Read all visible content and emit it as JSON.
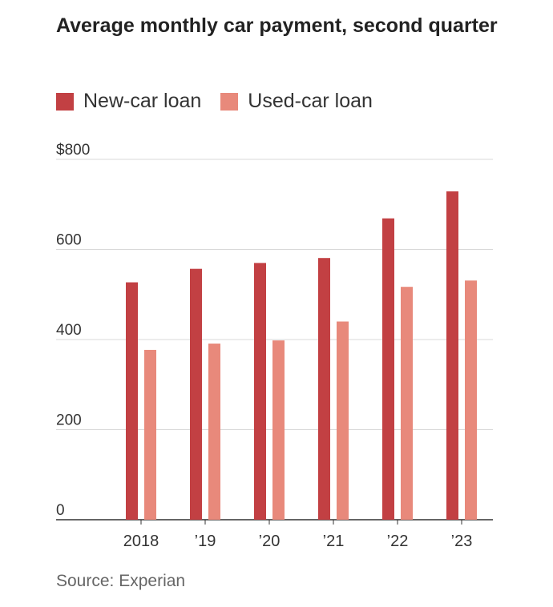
{
  "title": "Average monthly car payment, second quarter",
  "source": "Source: Experian",
  "colors": {
    "new": "#c24043",
    "used": "#e8897b",
    "grid": "#d9d9d9",
    "axis": "#333333",
    "text": "#333333"
  },
  "chart_data": {
    "type": "bar",
    "categories": [
      "2018",
      "’19",
      "’20",
      "’21",
      "’22",
      "’23"
    ],
    "series": [
      {
        "name": "New-car loan",
        "values": [
          527,
          557,
          570,
          581,
          669,
          729
        ]
      },
      {
        "name": "Used-car loan",
        "values": [
          377,
          391,
          398,
          440,
          517,
          531
        ]
      }
    ],
    "yticks": [
      "$800",
      "600",
      "400",
      "200",
      "0"
    ],
    "ylim": [
      0,
      800
    ],
    "xlabel": "",
    "ylabel": "",
    "grid": true,
    "legend_position": "top-left"
  }
}
